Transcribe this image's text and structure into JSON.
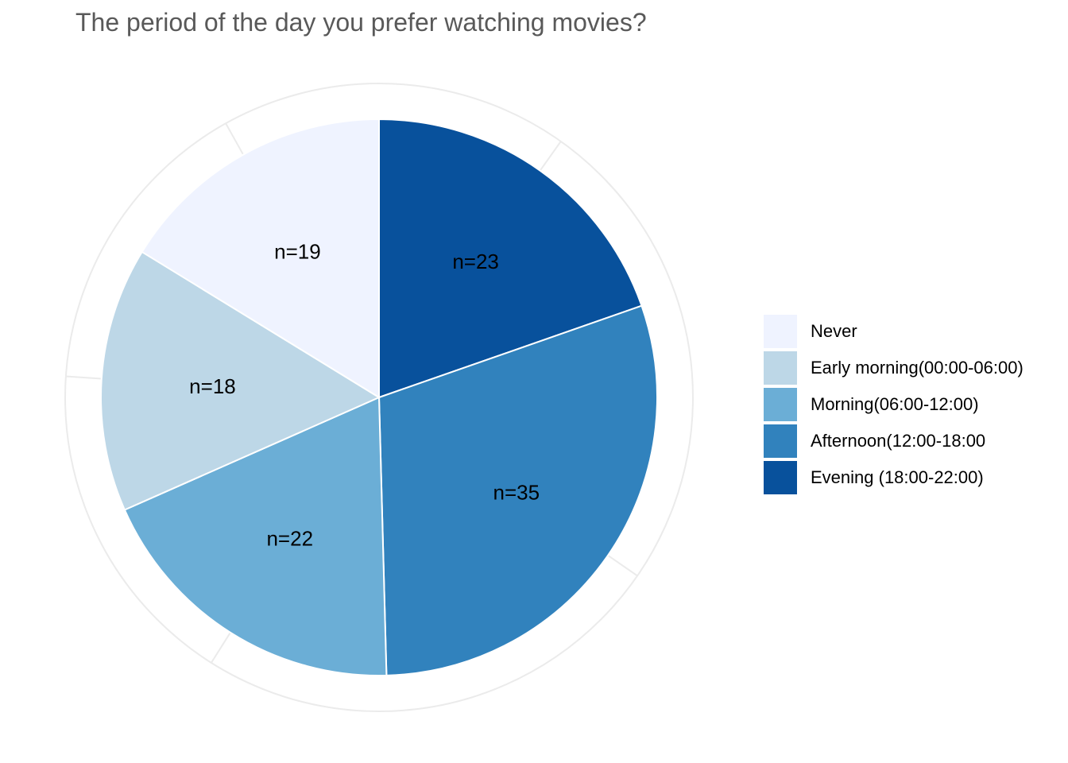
{
  "chart_data": {
    "type": "pie",
    "title": "The period of the day you prefer watching movies?",
    "categories": [
      "Never",
      "Early morning(00:00-06:00)",
      "Morning(06:00-12:00)",
      "Afternoon(12:00-18:00",
      "Evening (18:00-22:00)"
    ],
    "values": [
      19,
      18,
      22,
      35,
      23
    ],
    "slice_labels": [
      "n=19",
      "n=18",
      "n=22",
      "n=35",
      "n=23"
    ],
    "colors": [
      "#eff3ff",
      "#bdd7e7",
      "#6baed6",
      "#3182bd",
      "#08519c"
    ],
    "grid": true,
    "legend_position": "right"
  }
}
